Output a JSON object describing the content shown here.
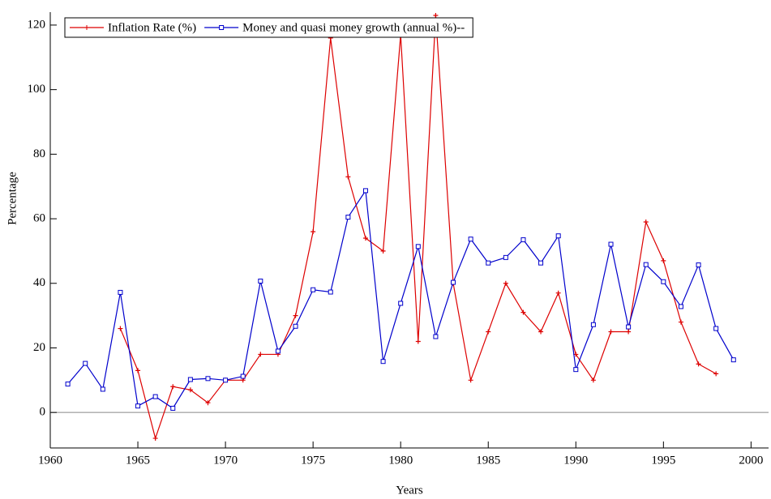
{
  "chart_data": {
    "type": "line",
    "xlabel": "Years",
    "ylabel": "Percentage",
    "x": [
      1961,
      1962,
      1963,
      1964,
      1965,
      1966,
      1967,
      1968,
      1969,
      1970,
      1971,
      1972,
      1973,
      1974,
      1975,
      1976,
      1977,
      1978,
      1979,
      1980,
      1981,
      1982,
      1983,
      1984,
      1985,
      1986,
      1987,
      1988,
      1989,
      1990,
      1991,
      1992,
      1993,
      1994,
      1995,
      1996,
      1997,
      1998,
      1999
    ],
    "series": [
      {
        "name": "Inflation Rate (%)",
        "color": "#dd0000",
        "marker": "plus",
        "values": [
          null,
          null,
          null,
          26,
          13,
          -8,
          8,
          7,
          3,
          10,
          10,
          18,
          18,
          30,
          56,
          116,
          73,
          54,
          50,
          117,
          22,
          123,
          40,
          10,
          25,
          40,
          31,
          25,
          37,
          18,
          10,
          25,
          25,
          59,
          47,
          28,
          15,
          12,
          null
        ]
      },
      {
        "name": "Money and quasi money growth (annual %)--",
        "color": "#0000cc",
        "marker": "square",
        "values": [
          8.8,
          15.2,
          7.2,
          37.2,
          2,
          4.9,
          1.3,
          10.2,
          10.5,
          10,
          11.2,
          40.7,
          19,
          26.7,
          38,
          37.3,
          60.5,
          68.7,
          15.8,
          33.8,
          51.4,
          23.5,
          40.3,
          53.7,
          46.3,
          48,
          53.5,
          46.3,
          54.7,
          13.3,
          27.2,
          52.1,
          26.5,
          45.8,
          40.5,
          32.8,
          45.7,
          26,
          16.3
        ]
      }
    ],
    "xlim": [
      1960,
      2001
    ],
    "ylim": [
      -11,
      124
    ],
    "xticks": [
      1960,
      1965,
      1970,
      1975,
      1980,
      1985,
      1990,
      1995,
      2000
    ],
    "yticks": [
      0,
      20,
      40,
      60,
      80,
      100,
      120
    ],
    "zero_line": true,
    "legend": "top-left"
  }
}
